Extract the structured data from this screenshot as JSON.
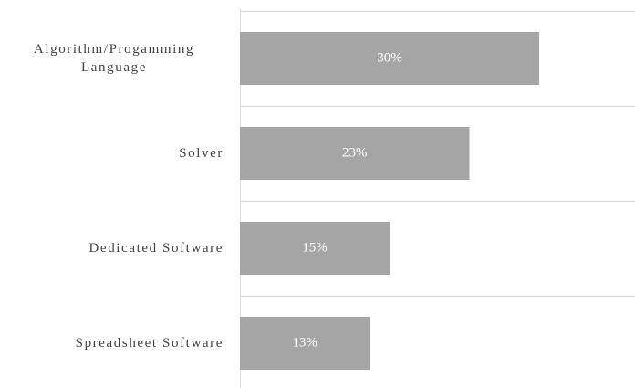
{
  "chart_data": {
    "type": "bar",
    "orientation": "horizontal",
    "categories": [
      "Algorithm/Progamming Language",
      "Solver",
      "Dedicated Software",
      "Spreadsheet Software"
    ],
    "values": [
      30,
      23,
      15,
      13
    ],
    "value_labels": [
      "30%",
      "23%",
      "15%",
      "13%"
    ],
    "color": "#a5a5a5",
    "xlim": [
      0,
      39.6
    ]
  }
}
